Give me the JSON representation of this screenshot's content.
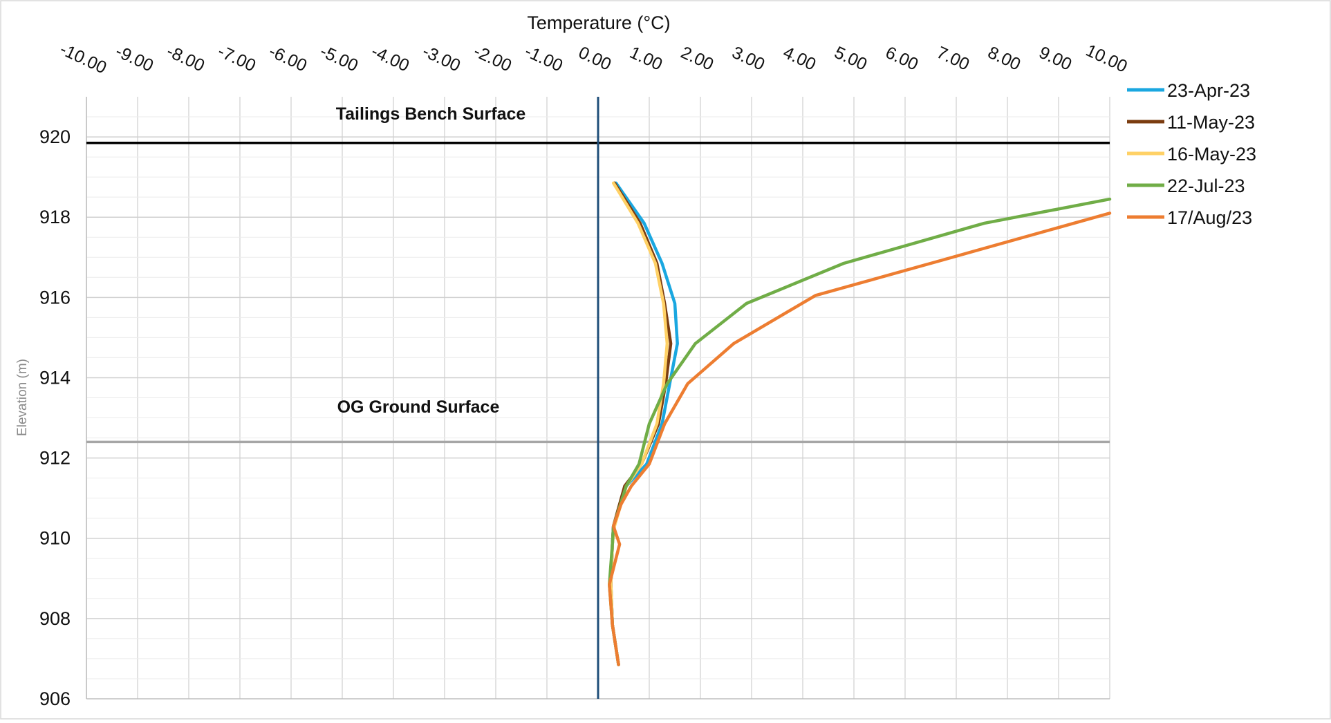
{
  "chart_data": {
    "type": "line",
    "xlabel": "Temperature (°C)",
    "ylabel": "Elevation (m)",
    "xlim": [
      -10,
      10
    ],
    "ylim": [
      906,
      921
    ],
    "x_tick_labels": [
      "-10.00",
      "-9.00",
      "-8.00",
      "-7.00",
      "-6.00",
      "-5.00",
      "-4.00",
      "-3.00",
      "-2.00",
      "-1.00",
      "0.00",
      "1.00",
      "2.00",
      "3.00",
      "4.00",
      "5.00",
      "6.00",
      "7.00",
      "8.00",
      "9.00",
      "10.00"
    ],
    "x_ticks": [
      -10,
      -9,
      -8,
      -7,
      -6,
      -5,
      -4,
      -3,
      -2,
      -1,
      0,
      1,
      2,
      3,
      4,
      5,
      6,
      7,
      8,
      9,
      10
    ],
    "y_tick_labels": [
      "906",
      "908",
      "910",
      "912",
      "914",
      "916",
      "918",
      "920"
    ],
    "y_ticks": [
      906,
      908,
      910,
      912,
      914,
      916,
      918,
      920
    ],
    "x_axis_position": "top",
    "grid": true,
    "legend_position": "right",
    "reference_lines": [
      {
        "type": "horizontal",
        "y": 919.85,
        "color": "#000000",
        "label": "Tailings Bench Surface"
      },
      {
        "type": "horizontal",
        "y": 912.4,
        "color": "#a6a6a6",
        "label": "OG Ground Surface"
      },
      {
        "type": "vertical",
        "x": 0,
        "color": "#1f4e79"
      }
    ],
    "series": [
      {
        "name": "23-Apr-23",
        "color": "#1aa7e0",
        "x": [
          0.35,
          0.9,
          1.25,
          1.5,
          1.55,
          1.4,
          1.25,
          0.95,
          0.55,
          0.3,
          0.28,
          0.25,
          0.28,
          0.4
        ],
        "y": [
          918.85,
          917.85,
          916.85,
          915.85,
          914.85,
          913.85,
          912.85,
          911.85,
          911.3,
          910.3,
          909.85,
          908.85,
          907.85,
          906.85
        ]
      },
      {
        "name": "11-May-23",
        "color": "#7b3c10",
        "x": [
          0.32,
          0.82,
          1.15,
          1.3,
          1.42,
          1.32,
          1.18,
          0.85,
          0.52,
          0.3,
          0.28,
          0.25,
          0.28,
          0.4
        ],
        "y": [
          918.85,
          917.85,
          916.85,
          915.85,
          914.85,
          913.85,
          912.85,
          911.85,
          911.3,
          910.3,
          909.85,
          908.85,
          907.85,
          906.85
        ]
      },
      {
        "name": "16-May-23",
        "color": "#ffd166",
        "x": [
          0.3,
          0.78,
          1.12,
          1.28,
          1.35,
          1.28,
          1.15,
          0.85,
          0.55,
          0.32,
          0.28,
          0.25,
          0.28,
          0.4
        ],
        "y": [
          918.85,
          917.85,
          916.85,
          915.85,
          914.85,
          913.85,
          912.85,
          911.85,
          911.3,
          910.3,
          909.85,
          908.85,
          907.85,
          906.85
        ]
      },
      {
        "name": "22-Jul-23",
        "color": "#70ad47",
        "x": [
          10.0,
          7.55,
          4.8,
          2.9,
          1.9,
          1.35,
          1.0,
          0.8,
          0.55,
          0.3,
          0.28,
          0.22,
          0.28,
          0.4
        ],
        "y": [
          918.45,
          917.85,
          916.85,
          915.85,
          914.85,
          913.85,
          912.85,
          911.85,
          911.3,
          910.3,
          909.85,
          908.85,
          907.85,
          906.85
        ]
      },
      {
        "name": "17/Aug/23",
        "color": "#ed7d31",
        "x": [
          10.0,
          6.5,
          4.25,
          2.65,
          1.75,
          1.3,
          1.0,
          0.65,
          0.45,
          0.3,
          0.42,
          0.22,
          0.28,
          0.4
        ],
        "y": [
          918.1,
          916.85,
          916.05,
          914.85,
          913.85,
          912.85,
          911.85,
          911.3,
          910.85,
          910.3,
          909.85,
          908.85,
          907.85,
          906.85
        ]
      }
    ]
  }
}
